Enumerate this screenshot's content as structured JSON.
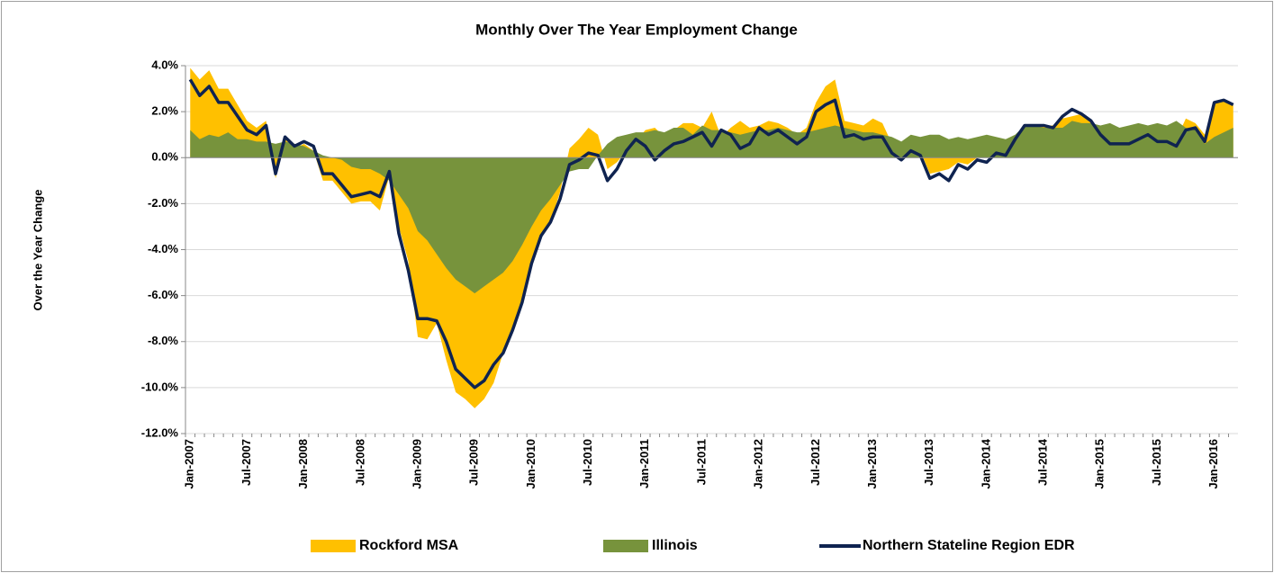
{
  "chart_data": {
    "type": "area_line",
    "title": "Monthly Over The Year Employment Change",
    "y_label": "Over the Year Change",
    "categories": [
      "Jan-2007",
      null,
      null,
      null,
      null,
      null,
      "Jul-2007",
      null,
      null,
      null,
      null,
      null,
      "Jan-2008",
      null,
      null,
      null,
      null,
      null,
      "Jul-2008",
      null,
      null,
      null,
      null,
      null,
      "Jan-2009",
      null,
      null,
      null,
      null,
      null,
      "Jul-2009",
      null,
      null,
      null,
      null,
      null,
      "Jan-2010",
      null,
      null,
      null,
      null,
      null,
      "Jul-2010",
      null,
      null,
      null,
      null,
      null,
      "Jan-2011",
      null,
      null,
      null,
      null,
      null,
      "Jul-2011",
      null,
      null,
      null,
      null,
      null,
      "Jan-2012",
      null,
      null,
      null,
      null,
      null,
      "Jul-2012",
      null,
      null,
      null,
      null,
      null,
      "Jan-2013",
      null,
      null,
      null,
      null,
      null,
      "Jul-2013",
      null,
      null,
      null,
      null,
      null,
      "Jan-2014",
      null,
      null,
      null,
      null,
      null,
      "Jul-2014",
      null,
      null,
      null,
      null,
      null,
      "Jan-2015",
      null,
      null,
      null,
      null,
      null,
      "Jul-2015",
      null,
      null,
      null,
      null,
      null,
      "Jan-2016",
      null,
      null
    ],
    "series": [
      {
        "name": "Rockford MSA",
        "color": "#ffc000",
        "kind": "area",
        "values": [
          3.9,
          3.4,
          3.8,
          3.0,
          3.0,
          2.3,
          1.6,
          1.3,
          1.6,
          -0.9,
          0.8,
          0.4,
          0.6,
          0.3,
          -1.0,
          -1.0,
          -1.5,
          -2.0,
          -1.9,
          -1.9,
          -2.3,
          -0.8,
          -3.0,
          -4.5,
          -7.8,
          -7.9,
          -7.2,
          -8.8,
          -10.2,
          -10.5,
          -10.9,
          -10.5,
          -9.8,
          -8.5,
          -7.6,
          -6.2,
          -4.5,
          -3.3,
          -2.8,
          -1.5,
          0.4,
          0.8,
          1.3,
          1.0,
          -0.5,
          -0.2,
          0.3,
          0.7,
          1.2,
          1.3,
          0.9,
          1.2,
          1.5,
          1.5,
          1.3,
          2.0,
          0.9,
          1.3,
          1.6,
          1.3,
          1.4,
          1.6,
          1.5,
          1.3,
          1.0,
          1.3,
          2.4,
          3.1,
          3.4,
          1.6,
          1.5,
          1.4,
          1.7,
          1.5,
          0.6,
          0.3,
          0.5,
          0.3,
          -0.7,
          -0.6,
          -0.5,
          -0.2,
          -0.3,
          0.0,
          0.0,
          0.2,
          0.2,
          0.9,
          1.4,
          1.4,
          1.4,
          1.4,
          1.7,
          1.8,
          1.9,
          1.6,
          1.0,
          0.7,
          0.7,
          0.7,
          1.0,
          1.2,
          0.9,
          0.9,
          0.8,
          1.7,
          1.5,
          1.0,
          2.4,
          2.5,
          2.3
        ]
      },
      {
        "name": "Illinois",
        "color": "#77933c",
        "kind": "area",
        "values": [
          1.2,
          0.8,
          1.0,
          0.9,
          1.1,
          0.8,
          0.8,
          0.7,
          0.7,
          0.6,
          0.7,
          0.6,
          0.5,
          0.3,
          0.1,
          0.0,
          -0.1,
          -0.4,
          -0.5,
          -0.5,
          -0.7,
          -1.0,
          -1.6,
          -2.2,
          -3.2,
          -3.6,
          -4.2,
          -4.8,
          -5.3,
          -5.6,
          -5.9,
          -5.6,
          -5.3,
          -5.0,
          -4.5,
          -3.8,
          -3.0,
          -2.3,
          -1.8,
          -1.2,
          -0.6,
          -0.5,
          -0.5,
          0.1,
          0.6,
          0.9,
          1.0,
          1.1,
          1.1,
          1.2,
          1.1,
          1.3,
          1.3,
          1.0,
          1.4,
          1.2,
          1.2,
          1.1,
          1.0,
          1.1,
          1.2,
          1.2,
          1.3,
          1.2,
          1.1,
          1.1,
          1.2,
          1.3,
          1.4,
          1.3,
          1.2,
          1.1,
          1.1,
          1.0,
          0.9,
          0.7,
          1.0,
          0.9,
          1.0,
          1.0,
          0.8,
          0.9,
          0.8,
          0.9,
          1.0,
          0.9,
          0.8,
          1.0,
          1.4,
          1.4,
          1.3,
          1.3,
          1.3,
          1.6,
          1.5,
          1.5,
          1.4,
          1.5,
          1.3,
          1.4,
          1.5,
          1.4,
          1.5,
          1.4,
          1.6,
          1.3,
          1.2,
          0.6,
          0.9,
          1.1,
          1.3
        ]
      },
      {
        "name": "Northern Stateline Region EDR",
        "color": "#0f2350",
        "kind": "line",
        "values": [
          3.4,
          2.7,
          3.1,
          2.4,
          2.4,
          1.8,
          1.2,
          1.0,
          1.4,
          -0.7,
          0.9,
          0.5,
          0.7,
          0.5,
          -0.7,
          -0.7,
          -1.2,
          -1.7,
          -1.6,
          -1.5,
          -1.7,
          -0.6,
          -3.3,
          -4.9,
          -7.0,
          -7.0,
          -7.1,
          -8.0,
          -9.2,
          -9.6,
          -10.0,
          -9.7,
          -9.0,
          -8.5,
          -7.5,
          -6.3,
          -4.6,
          -3.4,
          -2.8,
          -1.8,
          -0.3,
          -0.1,
          0.2,
          0.1,
          -1.0,
          -0.5,
          0.3,
          0.8,
          0.5,
          -0.1,
          0.3,
          0.6,
          0.7,
          0.9,
          1.1,
          0.5,
          1.2,
          1.0,
          0.4,
          0.6,
          1.3,
          1.0,
          1.2,
          0.9,
          0.6,
          0.9,
          2.0,
          2.3,
          2.5,
          0.9,
          1.0,
          0.8,
          0.9,
          0.9,
          0.2,
          -0.1,
          0.3,
          0.1,
          -0.9,
          -0.7,
          -1.0,
          -0.3,
          -0.5,
          -0.1,
          -0.2,
          0.2,
          0.1,
          0.8,
          1.4,
          1.4,
          1.4,
          1.3,
          1.8,
          2.1,
          1.9,
          1.6,
          1.0,
          0.6,
          0.6,
          0.6,
          0.8,
          1.0,
          0.7,
          0.7,
          0.5,
          1.2,
          1.3,
          0.7,
          2.4,
          2.5,
          2.3
        ]
      }
    ],
    "ylim": [
      -12,
      4
    ],
    "yticks": [
      {
        "value": -12,
        "label": "-12.0%"
      },
      {
        "value": -10,
        "label": "-10.0%"
      },
      {
        "value": -8,
        "label": "-8.0%"
      },
      {
        "value": -6,
        "label": "-6.0%"
      },
      {
        "value": -4,
        "label": "-4.0%"
      },
      {
        "value": -2,
        "label": "-2.0%"
      },
      {
        "value": 0,
        "label": "0.0%"
      },
      {
        "value": 2,
        "label": "2.0%"
      },
      {
        "value": 4,
        "label": "4.0%"
      }
    ],
    "grid": true,
    "legend": "bottom"
  }
}
